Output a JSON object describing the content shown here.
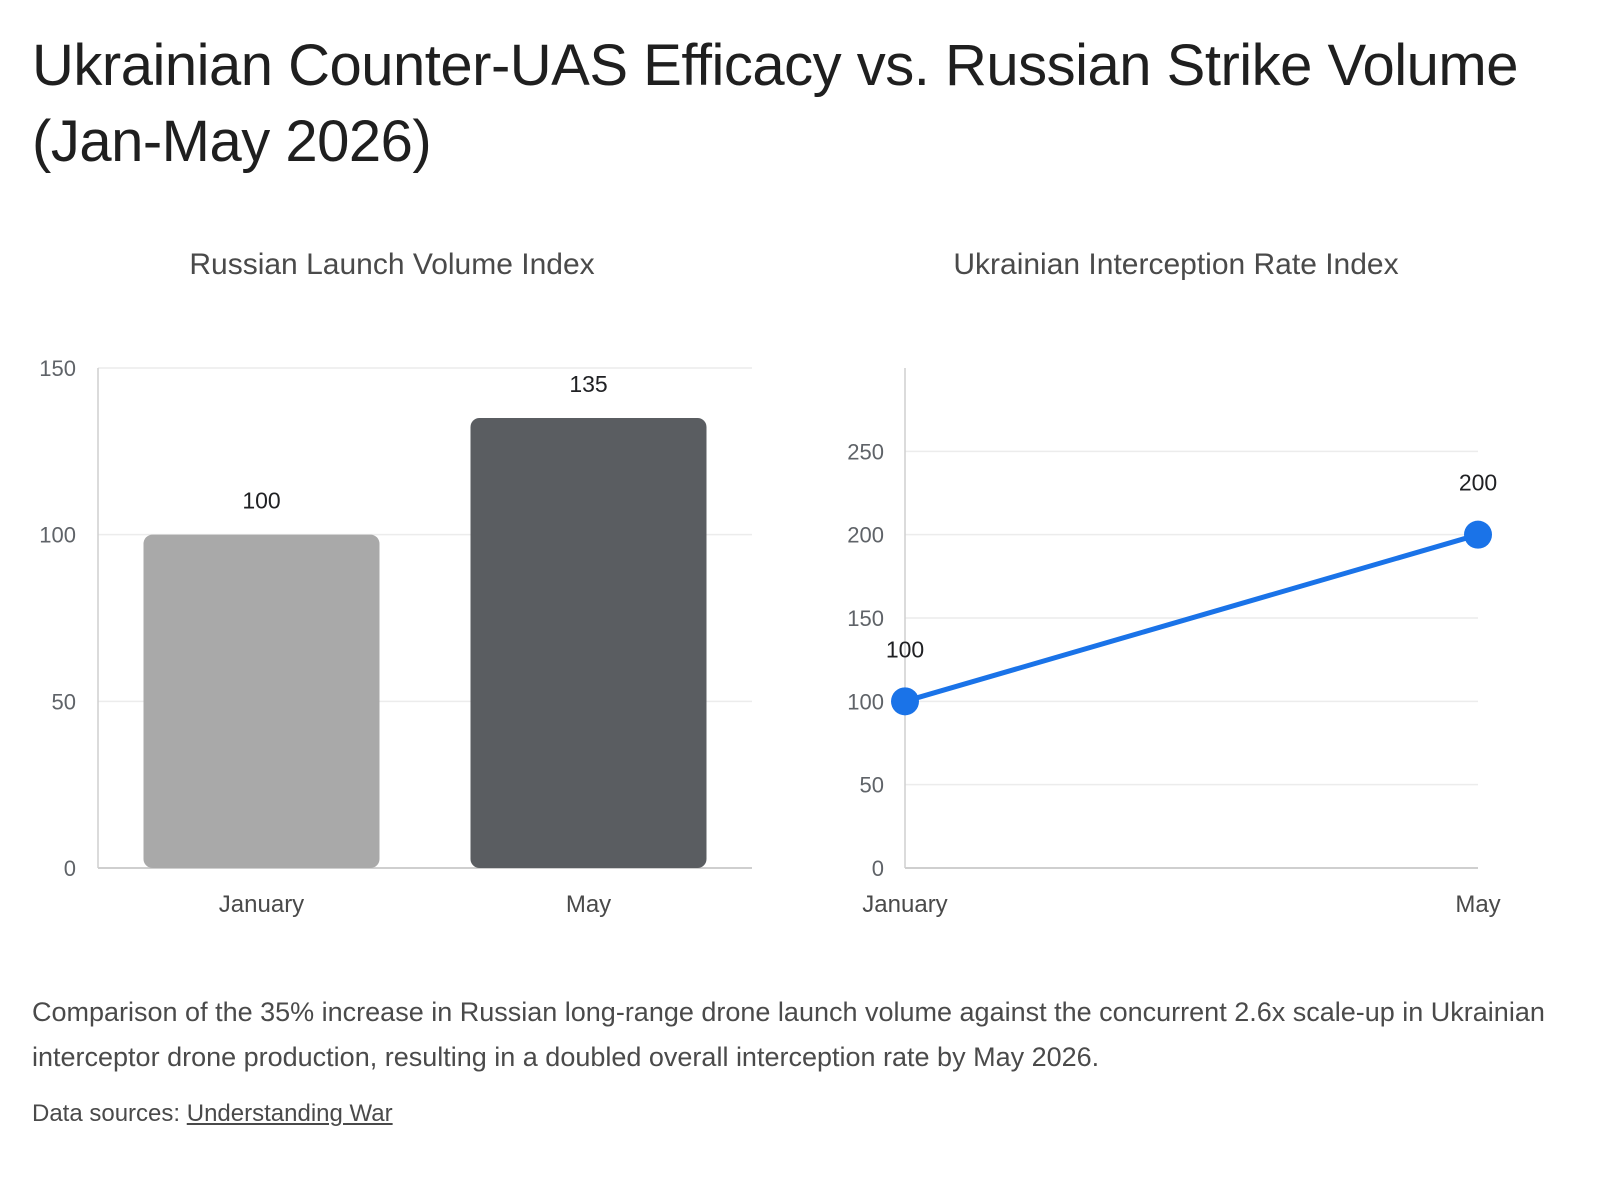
{
  "title": "Ukrainian Counter-UAS Efficacy vs. Russian Strike Volume (Jan-May 2026)",
  "caption": "Comparison of the 35% increase in Russian long-range drone launch volume against the concurrent 2.6x scale-up in Ukrainian interceptor drone production, resulting in a doubled overall interception rate by May 2026.",
  "sources": {
    "label": "Data sources:",
    "link_text": "Understanding War"
  },
  "colors": {
    "bar_january": "#a9a9a9",
    "bar_may": "#5a5d61",
    "line": "#1a73e8",
    "grid": "#ececec",
    "axis": "#cfcfcf",
    "tick_text": "#5f6368",
    "label_text": "#202124"
  },
  "chart_data": [
    {
      "type": "bar",
      "title": "Russian Launch Volume Index",
      "categories": [
        "January",
        "May"
      ],
      "values": [
        100,
        135
      ],
      "data_labels": [
        "100",
        "135"
      ],
      "ylim": [
        0,
        150
      ],
      "yticks": [
        0,
        50,
        100,
        150
      ],
      "grid": true,
      "xlabel": "",
      "ylabel": ""
    },
    {
      "type": "line",
      "title": "Ukrainian Interception Rate Index",
      "categories": [
        "January",
        "May"
      ],
      "values": [
        100,
        200
      ],
      "data_labels": [
        "100",
        "200"
      ],
      "ylim": [
        0,
        300
      ],
      "yticks": [
        0,
        50,
        100,
        150,
        200,
        250
      ],
      "grid": true,
      "xlabel": "",
      "ylabel": ""
    }
  ]
}
